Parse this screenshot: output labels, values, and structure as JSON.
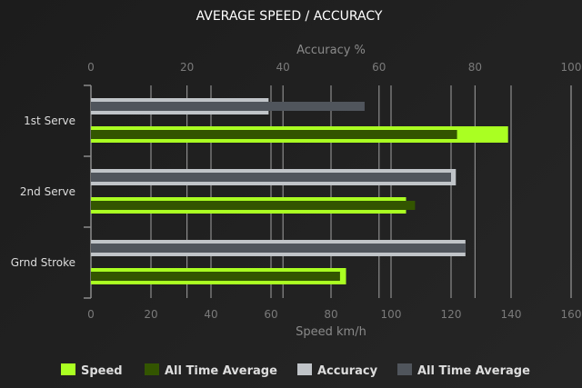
{
  "chart_data": {
    "type": "bar",
    "orientation": "horizontal",
    "title": "AVERAGE SPEED / ACCURACY",
    "categories": [
      "1st Serve",
      "2nd Serve",
      "Grnd Stroke"
    ],
    "x_bottom": {
      "label": "Speed km/h",
      "range": [
        0,
        160
      ],
      "ticks": [
        0,
        20,
        40,
        60,
        80,
        100,
        120,
        140,
        160
      ]
    },
    "x_top": {
      "label": "Accuracy %",
      "range": [
        0,
        100
      ],
      "ticks": [
        0,
        20,
        40,
        60,
        80,
        100
      ]
    },
    "grid": true,
    "legend_position": "bottom",
    "series": [
      {
        "name": "Speed",
        "axis": "bottom",
        "color": "#aaff22",
        "values": [
          139,
          105,
          85
        ]
      },
      {
        "name": "All Time Average",
        "axis": "bottom",
        "color": "#335500",
        "values": [
          122,
          108,
          83
        ]
      },
      {
        "name": "Accuracy",
        "axis": "top",
        "color": "#c0c4c8",
        "values": [
          37,
          76,
          78
        ]
      },
      {
        "name": "All Time Average",
        "axis": "top",
        "color": "#50555c",
        "values": [
          57,
          75,
          78
        ]
      }
    ]
  }
}
